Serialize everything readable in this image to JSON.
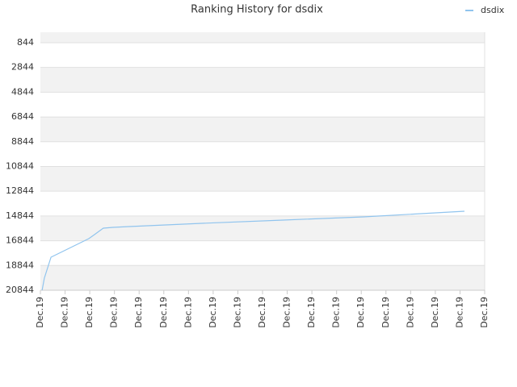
{
  "chart_data": {
    "type": "line",
    "title": "Ranking History for dsdix",
    "x": [
      0.07,
      0.16,
      0.43,
      1.96,
      2.19,
      2.55,
      2.94,
      3.6,
      6.54,
      9.82,
      13.09,
      17.18
    ],
    "series": [
      {
        "name": "dsdix",
        "color": "#90c4ee",
        "values": [
          20844,
          19867,
          18173,
          16674,
          16349,
          15828,
          15763,
          15697,
          15437,
          15176,
          14915,
          14459
        ]
      }
    ],
    "xlim": [
      0,
      18
    ],
    "xticks": [
      {
        "value": 0,
        "label": "Dec.19"
      },
      {
        "value": 1,
        "label": "Dec.19"
      },
      {
        "value": 2,
        "label": "Dec.19"
      },
      {
        "value": 3,
        "label": "Dec.19"
      },
      {
        "value": 4,
        "label": "Dec.19"
      },
      {
        "value": 5,
        "label": "Dec.19"
      },
      {
        "value": 6,
        "label": "Dec.19"
      },
      {
        "value": 7,
        "label": "Dec.19"
      },
      {
        "value": 8,
        "label": "Dec.19"
      },
      {
        "value": 9,
        "label": "Dec.19"
      },
      {
        "value": 10,
        "label": "Dec.19"
      },
      {
        "value": 11,
        "label": "Dec.19"
      },
      {
        "value": 12,
        "label": "Dec.19"
      },
      {
        "value": 13,
        "label": "Dec.19"
      },
      {
        "value": 14,
        "label": "Dec.19"
      },
      {
        "value": 15,
        "label": "Dec.19"
      },
      {
        "value": 16,
        "label": "Dec.19"
      },
      {
        "value": 17,
        "label": "Dec.19"
      },
      {
        "value": 18,
        "label": "Dec.19"
      }
    ],
    "ylim": [
      20844,
      0
    ],
    "yticks": [
      844,
      2844,
      4844,
      6844,
      8844,
      10844,
      12844,
      14844,
      16844,
      18844,
      20844
    ],
    "grid": true,
    "legend": "top-right"
  }
}
